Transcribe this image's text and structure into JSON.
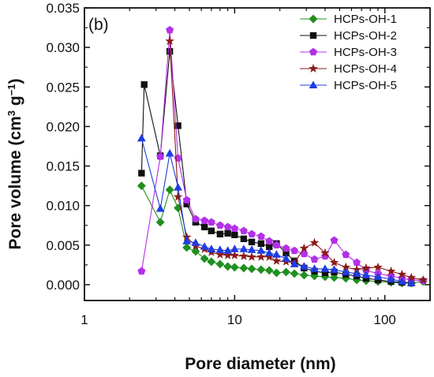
{
  "chart_data": {
    "type": "line",
    "panel_label": "(b)",
    "xlabel": "Pore diameter (nm)",
    "ylabel_main": "Pore volume (cm",
    "ylabel_sup1": "3",
    "ylabel_mid": " g",
    "ylabel_sup2": "−1",
    "ylabel_end": ")",
    "xscale": "log",
    "xlim": [
      1,
      200
    ],
    "ylim": [
      -0.002,
      0.035
    ],
    "x_ticks": [
      1,
      10,
      100
    ],
    "x_tick_labels": [
      "1",
      "10",
      "100"
    ],
    "y_ticks": [
      0.0,
      0.005,
      0.01,
      0.015,
      0.02,
      0.025,
      0.03,
      0.035
    ],
    "y_tick_labels": [
      "0.000",
      "0.005",
      "0.010",
      "0.015",
      "0.020",
      "0.025",
      "0.030",
      "0.035"
    ],
    "legend_position": "top-right",
    "grid": false,
    "series": [
      {
        "name": "HCPs-OH-1",
        "color": "#1f8f1f",
        "marker": "diamond",
        "x": [
          2.4,
          3.2,
          3.7,
          4.2,
          4.8,
          5.5,
          6.3,
          7.0,
          8.0,
          9.0,
          10,
          11.5,
          13,
          15,
          17,
          19,
          22,
          25,
          29,
          34,
          40,
          46,
          55,
          65,
          75,
          90,
          110,
          130,
          150,
          180
        ],
        "y": [
          0.0125,
          0.0079,
          0.012,
          0.0097,
          0.0047,
          0.0042,
          0.0033,
          0.0029,
          0.0026,
          0.0023,
          0.0022,
          0.0021,
          0.002,
          0.0019,
          0.0018,
          0.0015,
          0.0016,
          0.0014,
          0.0012,
          0.0011,
          0.001,
          0.0009,
          0.0008,
          0.0006,
          0.0005,
          0.0004,
          0.0003,
          0.0002,
          0.0002,
          0.0004
        ]
      },
      {
        "name": "HCPs-OH-2",
        "color": "#111111",
        "marker": "square",
        "x": [
          2.4,
          2.5,
          3.2,
          3.7,
          4.2,
          4.8,
          5.5,
          6.3,
          7.0,
          8.0,
          9.0,
          10,
          11.5,
          13,
          15,
          17,
          19,
          22,
          25,
          29,
          34,
          40,
          46,
          55,
          65,
          75,
          90,
          110,
          130,
          150
        ],
        "y": [
          0.0141,
          0.0253,
          0.0163,
          0.0295,
          0.0201,
          0.0102,
          0.0079,
          0.0073,
          0.0068,
          0.0064,
          0.0065,
          0.0063,
          0.0058,
          0.0054,
          0.0052,
          0.0048,
          0.0052,
          0.004,
          0.003,
          0.0021,
          0.0017,
          0.0015,
          0.0016,
          0.0013,
          0.0011,
          0.0008,
          0.0006,
          0.0004,
          0.0003,
          0.0002
        ]
      },
      {
        "name": "HCPs-OH-3",
        "color": "#b430e8",
        "marker": "pentagon",
        "x": [
          2.4,
          3.2,
          3.7,
          4.2,
          4.8,
          5.5,
          6.3,
          7.0,
          8.0,
          9.0,
          10,
          11.5,
          13,
          15,
          17,
          19,
          22,
          25,
          29,
          34,
          40,
          46,
          55,
          65,
          75,
          90,
          110,
          130,
          150,
          180
        ],
        "y": [
          0.0017,
          0.0162,
          0.0322,
          0.016,
          0.0107,
          0.0083,
          0.0081,
          0.0079,
          0.0075,
          0.0073,
          0.0071,
          0.0068,
          0.0064,
          0.0061,
          0.0055,
          0.005,
          0.0046,
          0.0043,
          0.0039,
          0.0032,
          0.0036,
          0.0056,
          0.0038,
          0.0028,
          0.0018,
          0.0014,
          0.0011,
          0.0008,
          0.0006,
          0.0005
        ]
      },
      {
        "name": "HCPs-OH-4",
        "color": "#8b1a1a",
        "marker": "star",
        "x": [
          3.7,
          4.2,
          4.8,
          5.5,
          6.3,
          7.0,
          8.0,
          9.0,
          10,
          11.5,
          13,
          15,
          17,
          19,
          22,
          25,
          29,
          34,
          40,
          46,
          55,
          65,
          75,
          90,
          110,
          130,
          150,
          180
        ],
        "y": [
          0.0308,
          0.0111,
          0.006,
          0.0049,
          0.0045,
          0.0041,
          0.0038,
          0.0037,
          0.0037,
          0.0036,
          0.0035,
          0.0035,
          0.0035,
          0.003,
          0.0029,
          0.0028,
          0.0046,
          0.0053,
          0.004,
          0.0028,
          0.0022,
          0.0019,
          0.0021,
          0.0022,
          0.0017,
          0.0013,
          0.0009,
          0.0006
        ]
      },
      {
        "name": "HCPs-OH-5",
        "color": "#1f3de0",
        "marker": "triangle",
        "x": [
          2.4,
          3.2,
          3.7,
          4.2,
          4.8,
          5.5,
          6.3,
          7.0,
          8.0,
          9.0,
          10,
          11.5,
          13,
          15,
          17,
          19,
          22,
          25,
          29,
          34,
          40,
          46,
          55,
          65,
          75,
          90,
          110,
          130,
          150
        ],
        "y": [
          0.0185,
          0.0096,
          0.0166,
          0.0123,
          0.0055,
          0.0053,
          0.0048,
          0.0045,
          0.0044,
          0.0043,
          0.0045,
          0.0045,
          0.0044,
          0.0043,
          0.004,
          0.0038,
          0.0033,
          0.0026,
          0.0023,
          0.002,
          0.002,
          0.0019,
          0.0016,
          0.0014,
          0.0012,
          0.001,
          0.0007,
          0.0004,
          0.0002
        ]
      }
    ]
  }
}
